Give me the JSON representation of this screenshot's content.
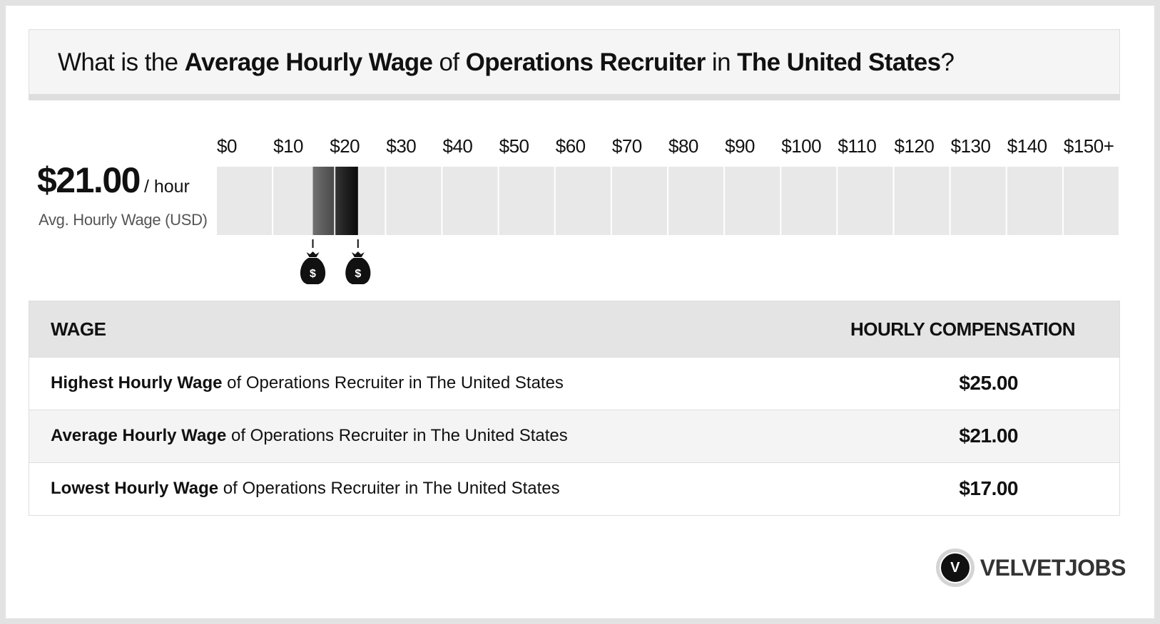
{
  "title": {
    "p1": "What is the ",
    "b1": "Average Hourly Wage",
    "p2": " of ",
    "b2": "Operations Recruiter",
    "p3": " in ",
    "b3": "The United States",
    "p4": "?"
  },
  "summary": {
    "value": "$21.00",
    "unit": "/ hour",
    "label": "Avg. Hourly Wage (USD)"
  },
  "chart_data": {
    "type": "bar",
    "orientation": "horizontal-range",
    "tick_labels": [
      "$0",
      "$10",
      "$20",
      "$30",
      "$40",
      "$50",
      "$60",
      "$70",
      "$80",
      "$90",
      "$100",
      "$110",
      "$120",
      "$130",
      "$140",
      "$150+"
    ],
    "xlim": [
      0,
      160
    ],
    "range": {
      "low": 17,
      "average": 21,
      "high": 25
    },
    "markers": [
      17,
      25
    ],
    "colors": {
      "track": "#e8e8e8",
      "range_dark": "#111111",
      "range_light": "#666666"
    }
  },
  "table": {
    "header_wage": "WAGE",
    "header_comp": "HOURLY COMPENSATION",
    "rows": [
      {
        "bold": "Highest Hourly Wage",
        "rest": " of Operations Recruiter in The United States",
        "value": "$25.00"
      },
      {
        "bold": "Average Hourly Wage",
        "rest": " of Operations Recruiter in The United States",
        "value": "$21.00"
      },
      {
        "bold": "Lowest Hourly Wage",
        "rest": " of Operations Recruiter in The United States",
        "value": "$17.00"
      }
    ]
  },
  "logo": {
    "mark": "V",
    "text": "VELVETJOBS"
  }
}
